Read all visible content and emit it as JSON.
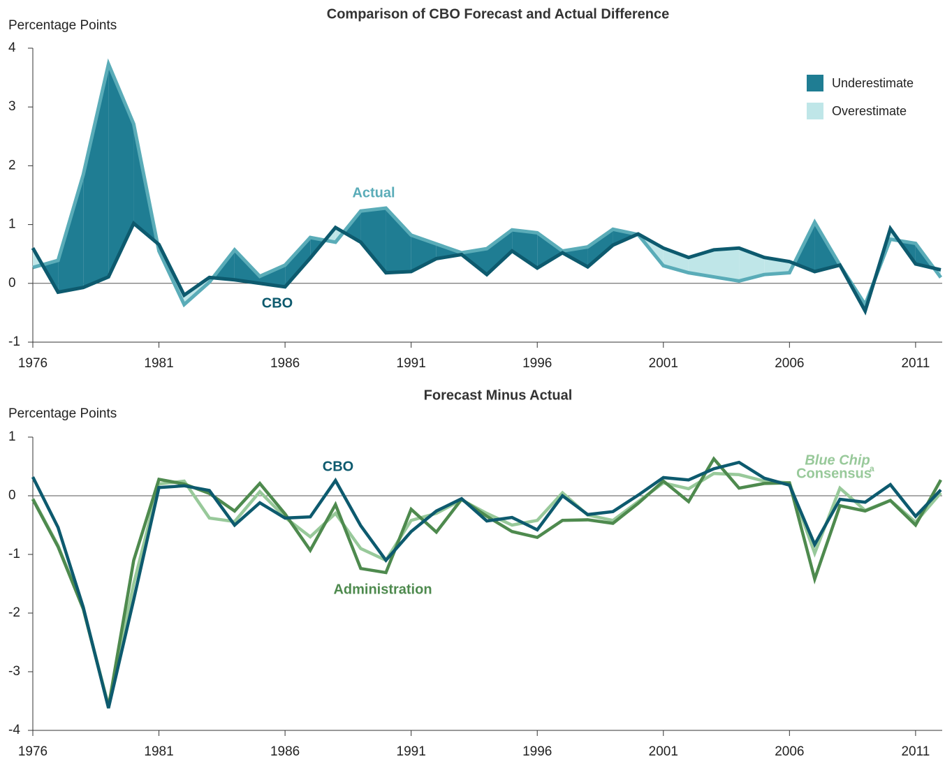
{
  "chart_data": [
    {
      "type": "area-difference",
      "title": "Comparison of CBO Forecast and Actual Difference",
      "y_label": "Percentage Points",
      "x": [
        1976,
        1977,
        1978,
        1979,
        1980,
        1981,
        1982,
        1983,
        1984,
        1985,
        1986,
        1987,
        1988,
        1989,
        1990,
        1991,
        1992,
        1993,
        1994,
        1995,
        1996,
        1997,
        1998,
        1999,
        2000,
        2001,
        2002,
        2003,
        2004,
        2005,
        2006,
        2007,
        2008,
        2009,
        2010,
        2011,
        2012
      ],
      "series": [
        {
          "name": "Actual",
          "color": "#5aacb8",
          "values": [
            0.27,
            0.39,
            1.85,
            3.73,
            2.71,
            0.55,
            -0.36,
            0.02,
            0.57,
            0.12,
            0.31,
            0.78,
            0.7,
            1.23,
            1.28,
            0.82,
            0.67,
            0.52,
            0.59,
            0.91,
            0.86,
            0.55,
            0.62,
            0.92,
            0.83,
            0.3,
            0.18,
            0.11,
            0.04,
            0.15,
            0.18,
            1.04,
            0.31,
            -0.36,
            0.75,
            0.68,
            0.1
          ]
        },
        {
          "name": "CBO",
          "color": "#0d5a6e",
          "values": [
            0.6,
            -0.15,
            -0.07,
            0.11,
            1.02,
            0.66,
            -0.2,
            0.1,
            0.06,
            0.0,
            -0.06,
            0.43,
            0.95,
            0.7,
            0.18,
            0.2,
            0.42,
            0.49,
            0.15,
            0.55,
            0.26,
            0.52,
            0.28,
            0.65,
            0.84,
            0.6,
            0.44,
            0.57,
            0.6,
            0.44,
            0.37,
            0.2,
            0.31,
            -0.47,
            0.93,
            0.33,
            0.23
          ]
        }
      ],
      "legend": [
        {
          "name": "Underestimate",
          "color": "#1f7d93"
        },
        {
          "name": "Overestimate",
          "color": "#bfe6e8"
        }
      ],
      "xlim": [
        1976,
        2012
      ],
      "xticks": [
        1976,
        1981,
        1986,
        1991,
        1996,
        2001,
        2006,
        2011
      ],
      "ylim": [
        -1,
        4
      ],
      "yticks": [
        -1,
        0,
        1,
        2,
        3,
        4
      ]
    },
    {
      "type": "line",
      "title": "Forecast Minus Actual",
      "y_label": "Percentage Points",
      "x": [
        1976,
        1977,
        1978,
        1979,
        1980,
        1981,
        1982,
        1983,
        1984,
        1985,
        1986,
        1987,
        1988,
        1989,
        1990,
        1991,
        1992,
        1993,
        1994,
        1995,
        1996,
        1997,
        1998,
        1999,
        2000,
        2001,
        2002,
        2003,
        2004,
        2005,
        2006,
        2007,
        2008,
        2009,
        2010,
        2011,
        2012
      ],
      "series": [
        {
          "name": "Blue Chip",
          "name_suffix": "Consensus",
          "note_marker": "a",
          "color": "#98c99a",
          "values": [
            -0.05,
            -0.85,
            -1.92,
            -3.58,
            -1.5,
            0.2,
            0.25,
            -0.38,
            -0.44,
            0.07,
            -0.37,
            -0.7,
            -0.3,
            -0.9,
            -1.1,
            -0.42,
            -0.3,
            -0.07,
            -0.3,
            -0.5,
            -0.42,
            0.05,
            -0.33,
            -0.42,
            -0.1,
            0.22,
            0.12,
            0.38,
            0.36,
            0.25,
            0.22,
            -0.98,
            0.13,
            -0.25,
            -0.08,
            -0.45,
            0.05
          ]
        },
        {
          "name": "Administration",
          "color": "#4e8a4e",
          "values": [
            -0.06,
            -0.87,
            -1.93,
            -3.6,
            -1.1,
            0.28,
            0.2,
            0.04,
            -0.26,
            0.21,
            -0.31,
            -0.93,
            -0.15,
            -1.24,
            -1.31,
            -0.23,
            -0.62,
            -0.06,
            -0.35,
            -0.61,
            -0.71,
            -0.42,
            -0.41,
            -0.47,
            -0.13,
            0.25,
            -0.1,
            0.63,
            0.13,
            0.21,
            0.22,
            -1.42,
            -0.17,
            -0.26,
            -0.08,
            -0.5,
            0.27
          ]
        },
        {
          "name": "CBO",
          "color": "#0d5a6e",
          "values": [
            0.32,
            -0.54,
            -1.9,
            -3.62,
            -1.77,
            0.14,
            0.17,
            0.09,
            -0.5,
            -0.12,
            -0.38,
            -0.36,
            0.26,
            -0.51,
            -1.1,
            -0.61,
            -0.26,
            -0.05,
            -0.43,
            -0.37,
            -0.58,
            0.0,
            -0.32,
            -0.27,
            0.01,
            0.31,
            0.27,
            0.46,
            0.57,
            0.3,
            0.18,
            -0.83,
            -0.06,
            -0.11,
            0.19,
            -0.35,
            0.1
          ]
        }
      ],
      "xlim": [
        1976,
        2012
      ],
      "xticks": [
        1976,
        1981,
        1986,
        1991,
        1996,
        2001,
        2006,
        2011
      ],
      "ylim": [
        -4,
        1
      ],
      "yticks": [
        -4,
        -3,
        -2,
        -1,
        0,
        1
      ]
    }
  ]
}
